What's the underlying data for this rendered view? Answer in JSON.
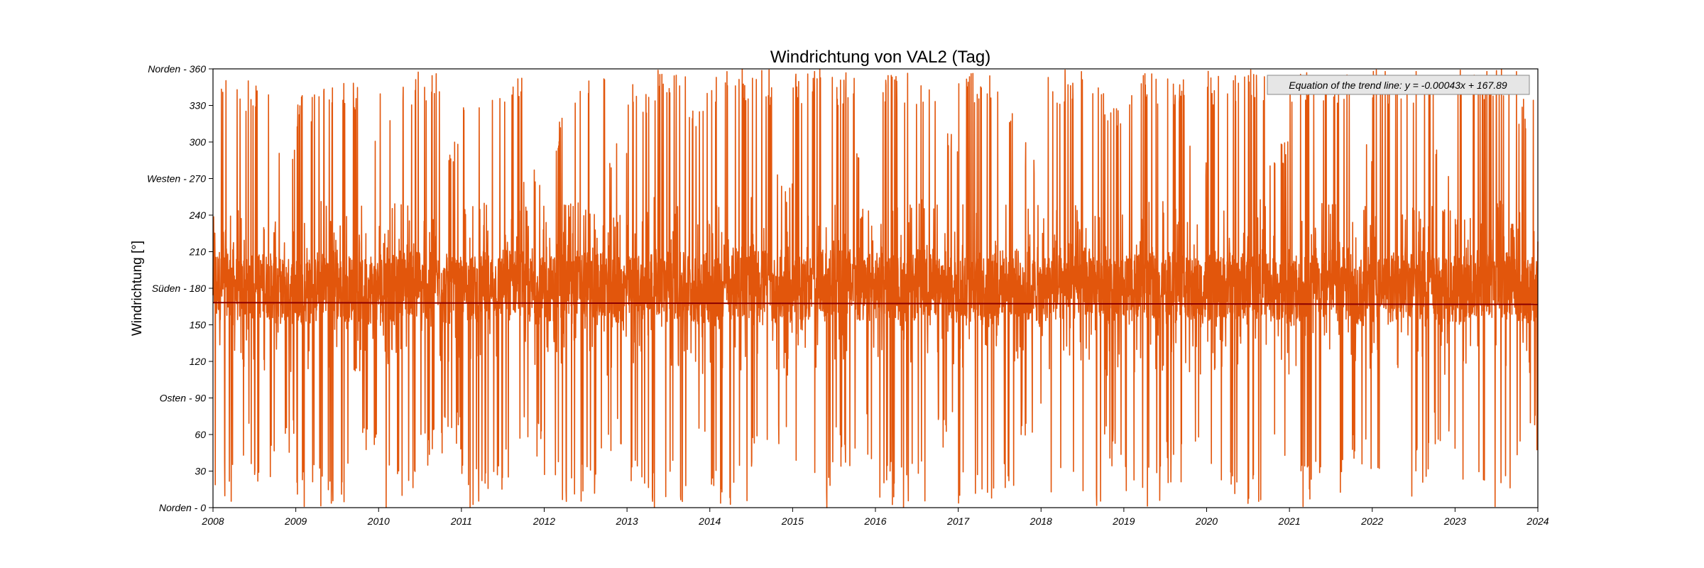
{
  "chart_data": {
    "type": "line",
    "title": "Windrichtung von VAL2 (Tag)",
    "xlabel": "",
    "ylabel": "Windrichtung [°]",
    "xlim": [
      "2008",
      "2024"
    ],
    "ylim": [
      0,
      360
    ],
    "x_ticks": [
      "2008",
      "2009",
      "2010",
      "2011",
      "2012",
      "2013",
      "2014",
      "2015",
      "2016",
      "2017",
      "2018",
      "2019",
      "2020",
      "2021",
      "2022",
      "2023",
      "2024"
    ],
    "y_ticks": [
      {
        "value": 0,
        "label": "Norden - 0"
      },
      {
        "value": 30,
        "label": "30"
      },
      {
        "value": 60,
        "label": "60"
      },
      {
        "value": 90,
        "label": "Osten - 90"
      },
      {
        "value": 120,
        "label": "120"
      },
      {
        "value": 150,
        "label": "150"
      },
      {
        "value": 180,
        "label": "Süden - 180"
      },
      {
        "value": 210,
        "label": "210"
      },
      {
        "value": 240,
        "label": "240"
      },
      {
        "value": 270,
        "label": "Westen - 270"
      },
      {
        "value": 300,
        "label": "300"
      },
      {
        "value": 330,
        "label": "330"
      },
      {
        "value": 360,
        "label": "Norden - 360"
      }
    ],
    "grid": false,
    "series": [
      {
        "color": "#e2560c",
        "data_summary": "daily values 2008-01-01 to 2023-12-31, mostly 150–210 with frequent spikes to 0 and 360",
        "x": [
          "2008-01",
          "2008-04",
          "2008-07",
          "2008-10",
          "2009-01",
          "2009-04",
          "2009-07",
          "2009-10",
          "2010-01",
          "2010-04",
          "2010-07",
          "2010-10",
          "2011-01",
          "2011-04",
          "2011-07",
          "2011-10",
          "2012-01",
          "2012-04",
          "2012-07",
          "2012-10",
          "2013-01",
          "2013-04",
          "2013-07",
          "2013-10",
          "2014-01",
          "2014-04",
          "2014-07",
          "2014-10",
          "2015-01",
          "2015-04",
          "2015-07",
          "2015-10",
          "2016-01",
          "2016-04",
          "2016-07",
          "2016-10",
          "2017-01",
          "2017-04",
          "2017-07",
          "2017-10",
          "2018-01",
          "2018-04",
          "2018-07",
          "2018-10",
          "2019-01",
          "2019-04",
          "2019-07",
          "2019-10",
          "2020-01",
          "2020-04",
          "2020-07",
          "2020-10",
          "2021-01",
          "2021-04",
          "2021-07",
          "2021-10",
          "2022-01",
          "2022-04",
          "2022-07",
          "2022-10",
          "2023-01",
          "2023-04",
          "2023-07",
          "2023-10"
        ],
        "y_center": [
          185,
          180,
          182,
          178,
          178,
          185,
          180,
          178,
          180,
          185,
          182,
          178,
          180,
          182,
          185,
          178,
          180,
          185,
          182,
          178,
          180,
          185,
          182,
          178,
          180,
          182,
          185,
          178,
          180,
          182,
          185,
          178,
          182,
          180,
          185,
          178,
          180,
          182,
          185,
          178,
          180,
          182,
          185,
          178,
          180,
          182,
          185,
          178,
          180,
          182,
          185,
          178,
          180,
          182,
          185,
          178,
          180,
          182,
          185,
          178,
          180,
          182,
          185,
          178
        ],
        "y_max": [
          360,
          355,
          350,
          300,
          340,
          360,
          350,
          310,
          340,
          360,
          360,
          300,
          350,
          360,
          360,
          280,
          320,
          360,
          360,
          300,
          350,
          360,
          360,
          340,
          360,
          360,
          360,
          280,
          360,
          360,
          360,
          300,
          360,
          360,
          360,
          310,
          360,
          360,
          340,
          300,
          360,
          360,
          360,
          340,
          360,
          360,
          360,
          300,
          360,
          360,
          360,
          310,
          360,
          360,
          360,
          300,
          360,
          360,
          360,
          300,
          360,
          360,
          360,
          340
        ],
        "y_min": [
          0,
          30,
          20,
          40,
          0,
          0,
          0,
          40,
          0,
          10,
          30,
          40,
          0,
          0,
          20,
          40,
          0,
          0,
          10,
          40,
          0,
          0,
          0,
          40,
          0,
          0,
          20,
          40,
          0,
          0,
          30,
          40,
          0,
          0,
          0,
          40,
          0,
          0,
          0,
          50,
          0,
          0,
          0,
          30,
          0,
          0,
          20,
          40,
          0,
          0,
          0,
          40,
          0,
          0,
          0,
          30,
          0,
          0,
          20,
          40,
          0,
          0,
          10,
          40
        ]
      }
    ],
    "trend_line": {
      "color": "#8b0000",
      "start": 168.2,
      "end": 166.8
    },
    "annotation": "Equation of the trend line: y = -0.00043x + 167.89"
  }
}
